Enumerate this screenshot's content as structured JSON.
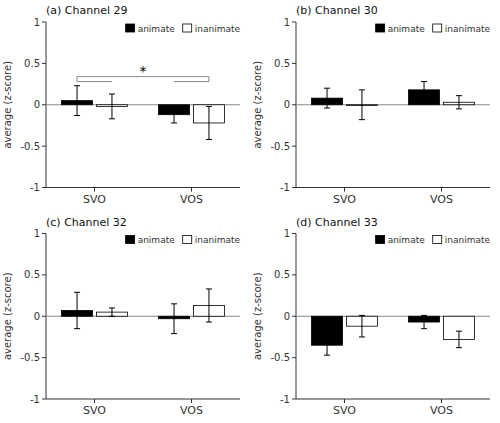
{
  "chart_data": [
    {
      "type": "bar",
      "title": "(a) Channel 29",
      "categories": [
        "SVO",
        "VOS"
      ],
      "series": [
        {
          "name": "animate",
          "color": "#000000",
          "values": [
            0.05,
            -0.12
          ],
          "errors": [
            0.18,
            0.1
          ]
        },
        {
          "name": "inanimate",
          "color": "#ffffff",
          "values": [
            -0.02,
            -0.22
          ],
          "errors": [
            0.15,
            0.2
          ]
        }
      ],
      "ylabel": "average (z-score)",
      "ylim": [
        -1,
        1
      ],
      "yticks": [
        -1,
        -0.5,
        0,
        0.5,
        1
      ],
      "legend": "top-right",
      "grid": false,
      "annotations": [
        {
          "text": "*",
          "y": 0.34,
          "bracket_y": 0.28
        }
      ]
    },
    {
      "type": "bar",
      "title": "(b) Channel 30",
      "categories": [
        "SVO",
        "VOS"
      ],
      "series": [
        {
          "name": "animate",
          "color": "#000000",
          "values": [
            0.08,
            0.18
          ],
          "errors": [
            0.12,
            0.1
          ]
        },
        {
          "name": "inanimate",
          "color": "#ffffff",
          "values": [
            0.0,
            0.03
          ],
          "errors": [
            0.18,
            0.08
          ]
        }
      ],
      "ylabel": "average (z-score)",
      "ylim": [
        -1,
        1
      ],
      "yticks": [
        -1,
        -0.5,
        0,
        0.5,
        1
      ],
      "legend": "top-right",
      "grid": false
    },
    {
      "type": "bar",
      "title": "(c) Channel 32",
      "categories": [
        "SVO",
        "VOS"
      ],
      "series": [
        {
          "name": "animate",
          "color": "#000000",
          "values": [
            0.07,
            -0.03
          ],
          "errors": [
            0.22,
            0.18
          ]
        },
        {
          "name": "inanimate",
          "color": "#ffffff",
          "values": [
            0.05,
            0.13
          ],
          "errors": [
            0.05,
            0.2
          ]
        }
      ],
      "ylabel": "average (z-score)",
      "ylim": [
        -1,
        1
      ],
      "yticks": [
        -1,
        -0.5,
        0,
        0.5,
        1
      ],
      "legend": "top-right",
      "grid": false
    },
    {
      "type": "bar",
      "title": "(d) Channel 33",
      "categories": [
        "SVO",
        "VOS"
      ],
      "series": [
        {
          "name": "animate",
          "color": "#000000",
          "values": [
            -0.35,
            -0.07
          ],
          "errors": [
            0.12,
            0.08
          ]
        },
        {
          "name": "inanimate",
          "color": "#ffffff",
          "values": [
            -0.12,
            -0.28
          ],
          "errors": [
            0.13,
            0.1
          ]
        }
      ],
      "ylabel": "average (z-score)",
      "ylim": [
        -1,
        1
      ],
      "yticks": [
        -1,
        -0.5,
        0,
        0.5,
        1
      ],
      "legend": "top-right",
      "grid": false
    }
  ]
}
